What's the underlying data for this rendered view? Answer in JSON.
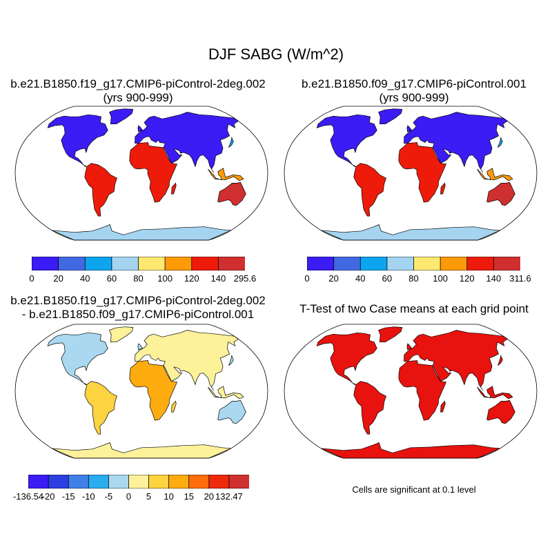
{
  "figure": {
    "title": "DJF SABG (W/m^2)"
  },
  "panels": [
    {
      "title_line1": "b.e21.B1850.f19_g17.CMIP6-piControl-2deg.002",
      "title_line2": "(yrs 900-999)",
      "colorbar": {
        "colors": [
          "#3b1cf5",
          "#4169e1",
          "#0ea5f0",
          "#a4d4f0",
          "#fde870",
          "#fe9a07",
          "#ef1b0a",
          "#d02f2f"
        ],
        "tick_labels": [
          "0",
          "20",
          "40",
          "60",
          "80",
          "100",
          "120",
          "140",
          "295.6"
        ]
      }
    },
    {
      "title_line1": "b.e21.B1850.f09_g17.CMIP6-piControl.001",
      "title_line2": "(yrs 900-999)",
      "colorbar": {
        "colors": [
          "#3b1cf5",
          "#4169e1",
          "#0ea5f0",
          "#a4d4f0",
          "#fde870",
          "#fe9a07",
          "#ef1b0a",
          "#d02f2f"
        ],
        "tick_labels": [
          "0",
          "20",
          "40",
          "60",
          "80",
          "100",
          "120",
          "140",
          "311.6"
        ]
      }
    },
    {
      "title_line1": "b.e21.B1850.f19_g17.CMIP6-piControl-2deg.002",
      "title_line2": "- b.e21.B1850.f09_g17.CMIP6-piControl.001",
      "colorbar": {
        "colors": [
          "#3b1cf5",
          "#2d3fe0",
          "#3f7fe8",
          "#2aacef",
          "#a9d8f0",
          "#fdf19a",
          "#fed340",
          "#feac10",
          "#fd6e0a",
          "#ef2a0a",
          "#d03030"
        ],
        "tick_labels": [
          "-136.54",
          "-20",
          "-15",
          "-10",
          "-5",
          "0",
          "5",
          "10",
          "15",
          "20",
          "132.47"
        ]
      }
    },
    {
      "title_line1": "T-Test of two Case means at each grid point",
      "note": "Cells are significant at 0.1 level",
      "colors": {
        "significant": "#e8120e"
      }
    }
  ]
}
